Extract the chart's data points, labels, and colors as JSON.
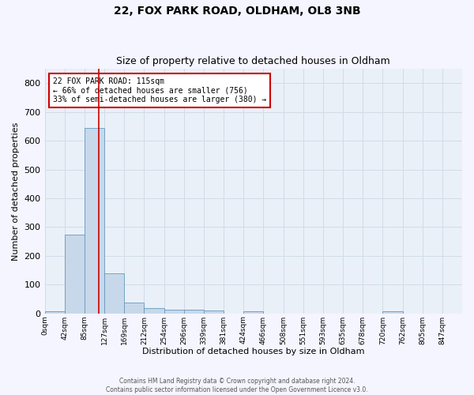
{
  "title1": "22, FOX PARK ROAD, OLDHAM, OL8 3NB",
  "title2": "Size of property relative to detached houses in Oldham",
  "xlabel": "Distribution of detached houses by size in Oldham",
  "ylabel": "Number of detached properties",
  "footer": "Contains HM Land Registry data © Crown copyright and database right 2024.\nContains public sector information licensed under the Open Government Licence v3.0.",
  "bin_labels": [
    "0sqm",
    "42sqm",
    "85sqm",
    "127sqm",
    "169sqm",
    "212sqm",
    "254sqm",
    "296sqm",
    "339sqm",
    "381sqm",
    "424sqm",
    "466sqm",
    "508sqm",
    "551sqm",
    "593sqm",
    "635sqm",
    "678sqm",
    "720sqm",
    "762sqm",
    "805sqm",
    "847sqm"
  ],
  "bar_heights": [
    8,
    275,
    645,
    140,
    37,
    18,
    12,
    12,
    10,
    0,
    8,
    0,
    0,
    0,
    0,
    0,
    0,
    8,
    0,
    0,
    0
  ],
  "bar_color": "#c8d8eb",
  "bar_edge_color": "#6699bb",
  "grid_color": "#d0dce8",
  "background_color": "#eaf0f8",
  "fig_background": "#f5f5ff",
  "annotation_box_facecolor": "#ffffff",
  "annotation_border_color": "#cc0000",
  "red_line_color": "#cc0000",
  "pct_smaller": 66,
  "count_smaller": 756,
  "pct_semi_larger": 33,
  "count_semi_larger": 380,
  "ylim": [
    0,
    850
  ],
  "yticks": [
    0,
    100,
    200,
    300,
    400,
    500,
    600,
    700,
    800
  ]
}
